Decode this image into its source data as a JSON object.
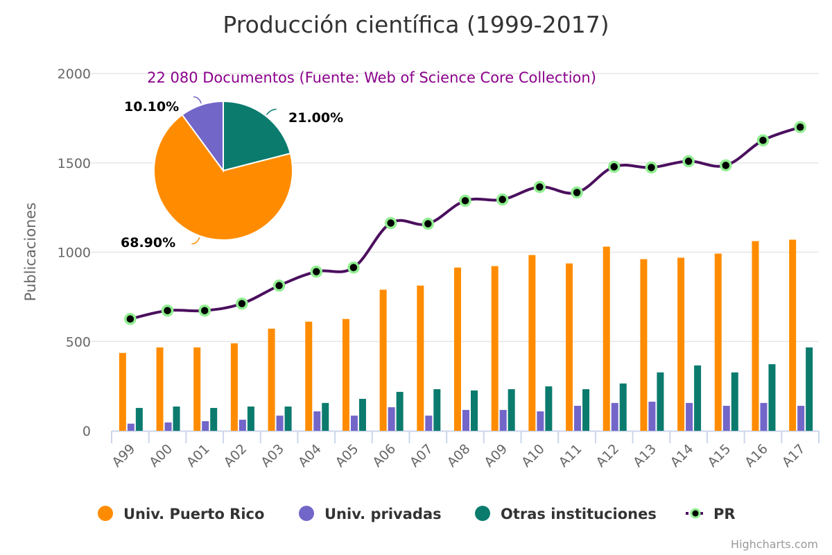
{
  "chart_data": {
    "type": "bar",
    "title": "Producción científica (1999-2017)",
    "subtitle": "22 080 Documentos (Fuente: Web of Science Core Collection)",
    "xlabel": "",
    "ylabel": "Publicaciones",
    "ylim": [
      0,
      2000
    ],
    "yticks": [
      0,
      500,
      1000,
      1500,
      2000
    ],
    "grid": true,
    "legend_position": "bottom",
    "categories": [
      "A99",
      "A00",
      "A01",
      "A02",
      "A03",
      "A04",
      "A05",
      "A06",
      "A07",
      "A08",
      "A09",
      "A10",
      "A11",
      "A12",
      "A13",
      "A14",
      "A15",
      "A16",
      "A17"
    ],
    "series": [
      {
        "name": "Univ. Puerto Rico",
        "type": "column",
        "color": "#FF8C00",
        "values": [
          436,
          467,
          467,
          490,
          572,
          611,
          626,
          790,
          813,
          914,
          922,
          984,
          937,
          1031,
          961,
          969,
          992,
          1062,
          1070
        ]
      },
      {
        "name": "Univ. privadas",
        "type": "column",
        "color": "#7266C9",
        "values": [
          40,
          47,
          54,
          62,
          85,
          109,
          85,
          132,
          85,
          117,
          117,
          109,
          140,
          156,
          163,
          156,
          140,
          156,
          140
        ]
      },
      {
        "name": "Otras instituciones",
        "type": "column",
        "color": "#0B7B6E",
        "values": [
          128,
          136,
          128,
          136,
          136,
          156,
          179,
          218,
          233,
          226,
          233,
          249,
          233,
          265,
          327,
          366,
          327,
          373,
          467
        ]
      },
      {
        "name": "PR",
        "type": "spline",
        "color": "#4B0F5E",
        "marker_fill": "#000000",
        "marker_stroke": "#90EE90",
        "values": [
          626,
          673,
          673,
          712,
          813,
          891,
          914,
          1163,
          1159,
          1288,
          1295,
          1365,
          1334,
          1478,
          1474,
          1509,
          1486,
          1626,
          1700
        ]
      }
    ],
    "pie": {
      "type": "pie",
      "slices": [
        {
          "name": "Otras instituciones",
          "value": 21.0,
          "label": "21.00%",
          "color": "#0B7B6E"
        },
        {
          "name": "Univ. Puerto Rico",
          "value": 68.9,
          "label": "68.90%",
          "color": "#FF8C00"
        },
        {
          "name": "Univ. privadas",
          "value": 10.1,
          "label": "10.10%",
          "color": "#7266C9"
        }
      ]
    }
  },
  "colors": {
    "title": "#333333",
    "subtitle": "#8B008B",
    "axis_text": "#666666",
    "grid": "#E6E6E6",
    "axis_line": "#CCD6EB"
  },
  "credits": "Highcharts.com"
}
